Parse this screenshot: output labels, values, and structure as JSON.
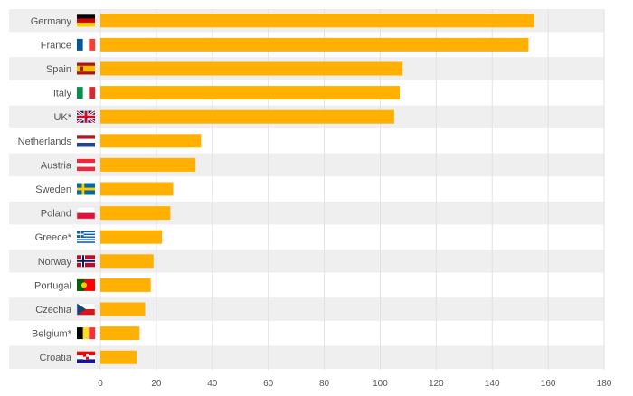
{
  "chart_data": {
    "type": "bar",
    "orientation": "horizontal",
    "title": "",
    "xlabel": "",
    "ylabel": "",
    "categories": [
      "Germany",
      "France",
      "Spain",
      "Italy",
      "UK*",
      "Netherlands",
      "Austria",
      "Sweden",
      "Poland",
      "Greece*",
      "Norway",
      "Portugal",
      "Czechia",
      "Belgium*",
      "Croatia"
    ],
    "values": [
      155,
      153,
      108,
      107,
      105,
      36,
      34,
      26,
      25,
      22,
      19,
      18,
      16,
      14,
      13
    ],
    "flags": [
      "germany-flag-icon",
      "france-flag-icon",
      "spain-flag-icon",
      "italy-flag-icon",
      "uk-flag-icon",
      "netherlands-flag-icon",
      "austria-flag-icon",
      "sweden-flag-icon",
      "poland-flag-icon",
      "greece-flag-icon",
      "norway-flag-icon",
      "portugal-flag-icon",
      "czechia-flag-icon",
      "belgium-flag-icon",
      "croatia-flag-icon"
    ],
    "xlim": [
      0,
      180
    ],
    "xticks": [
      0,
      20,
      40,
      60,
      80,
      100,
      120,
      140,
      160,
      180
    ],
    "grid": true,
    "alternating_row_bands": true,
    "colors": {
      "bar": "#FFB000",
      "band": "#EFEFEF",
      "grid": "#E2E2E2",
      "label": "#555555"
    }
  }
}
